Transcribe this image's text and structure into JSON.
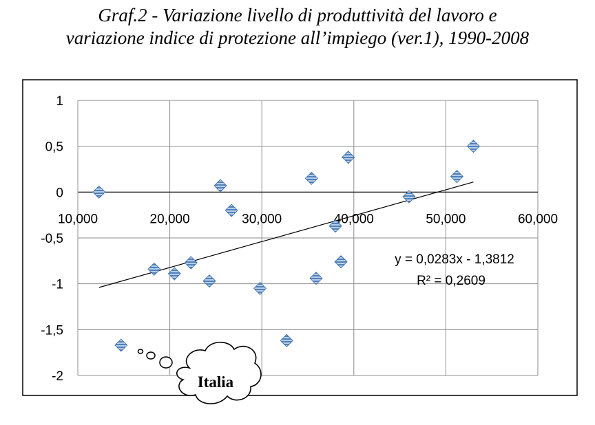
{
  "title": {
    "line1": "Graf.2 - Variazione livello di produttività del lavoro e",
    "line2": "variazione indice di protezione all’impiego (ver.1), 1990-2008"
  },
  "chart_data": {
    "type": "scatter",
    "title": "",
    "xlabel": "",
    "ylabel": "",
    "xlim": [
      10000,
      60000
    ],
    "ylim": [
      -2,
      1
    ],
    "x_ticks": [
      10000,
      20000,
      30000,
      40000,
      50000,
      60000
    ],
    "x_tick_labels": [
      "10,000",
      "20,000",
      "30,000",
      "40,000",
      "50,000",
      "60,000"
    ],
    "y_ticks": [
      1,
      0.5,
      0,
      -0.5,
      -1,
      -1.5,
      -2
    ],
    "y_tick_labels": [
      "1",
      "0,5",
      "0",
      "-0,5",
      "-1",
      "-1,5",
      "-2"
    ],
    "grid": true,
    "x_axis_crosses_at_y": 0,
    "marker": "diamond",
    "marker_color": "#4f81bd",
    "points": [
      {
        "x": 12300,
        "y": 0.0
      },
      {
        "x": 14700,
        "y": -1.67
      },
      {
        "x": 18300,
        "y": -0.84
      },
      {
        "x": 20500,
        "y": -0.89
      },
      {
        "x": 22300,
        "y": -0.77
      },
      {
        "x": 24300,
        "y": -0.97
      },
      {
        "x": 25500,
        "y": 0.07
      },
      {
        "x": 26700,
        "y": -0.2
      },
      {
        "x": 29800,
        "y": -1.05
      },
      {
        "x": 32700,
        "y": -1.62
      },
      {
        "x": 35400,
        "y": 0.15
      },
      {
        "x": 35900,
        "y": -0.94
      },
      {
        "x": 38000,
        "y": -0.37
      },
      {
        "x": 38600,
        "y": -0.76
      },
      {
        "x": 39400,
        "y": 0.38
      },
      {
        "x": 46000,
        "y": -0.05
      },
      {
        "x": 51200,
        "y": 0.17
      },
      {
        "x": 53000,
        "y": 0.5
      }
    ],
    "trendline": {
      "type": "linear",
      "x_range": [
        12300,
        53000
      ],
      "y_start": -1.04,
      "y_end": 0.11,
      "color": "#000000",
      "equation": "y = 0,0283x - 1,3812",
      "r_squared": "R² = 0,2609"
    },
    "annotation": {
      "text": "Italia",
      "points_to_x": 14700,
      "points_to_y": -1.67
    }
  }
}
